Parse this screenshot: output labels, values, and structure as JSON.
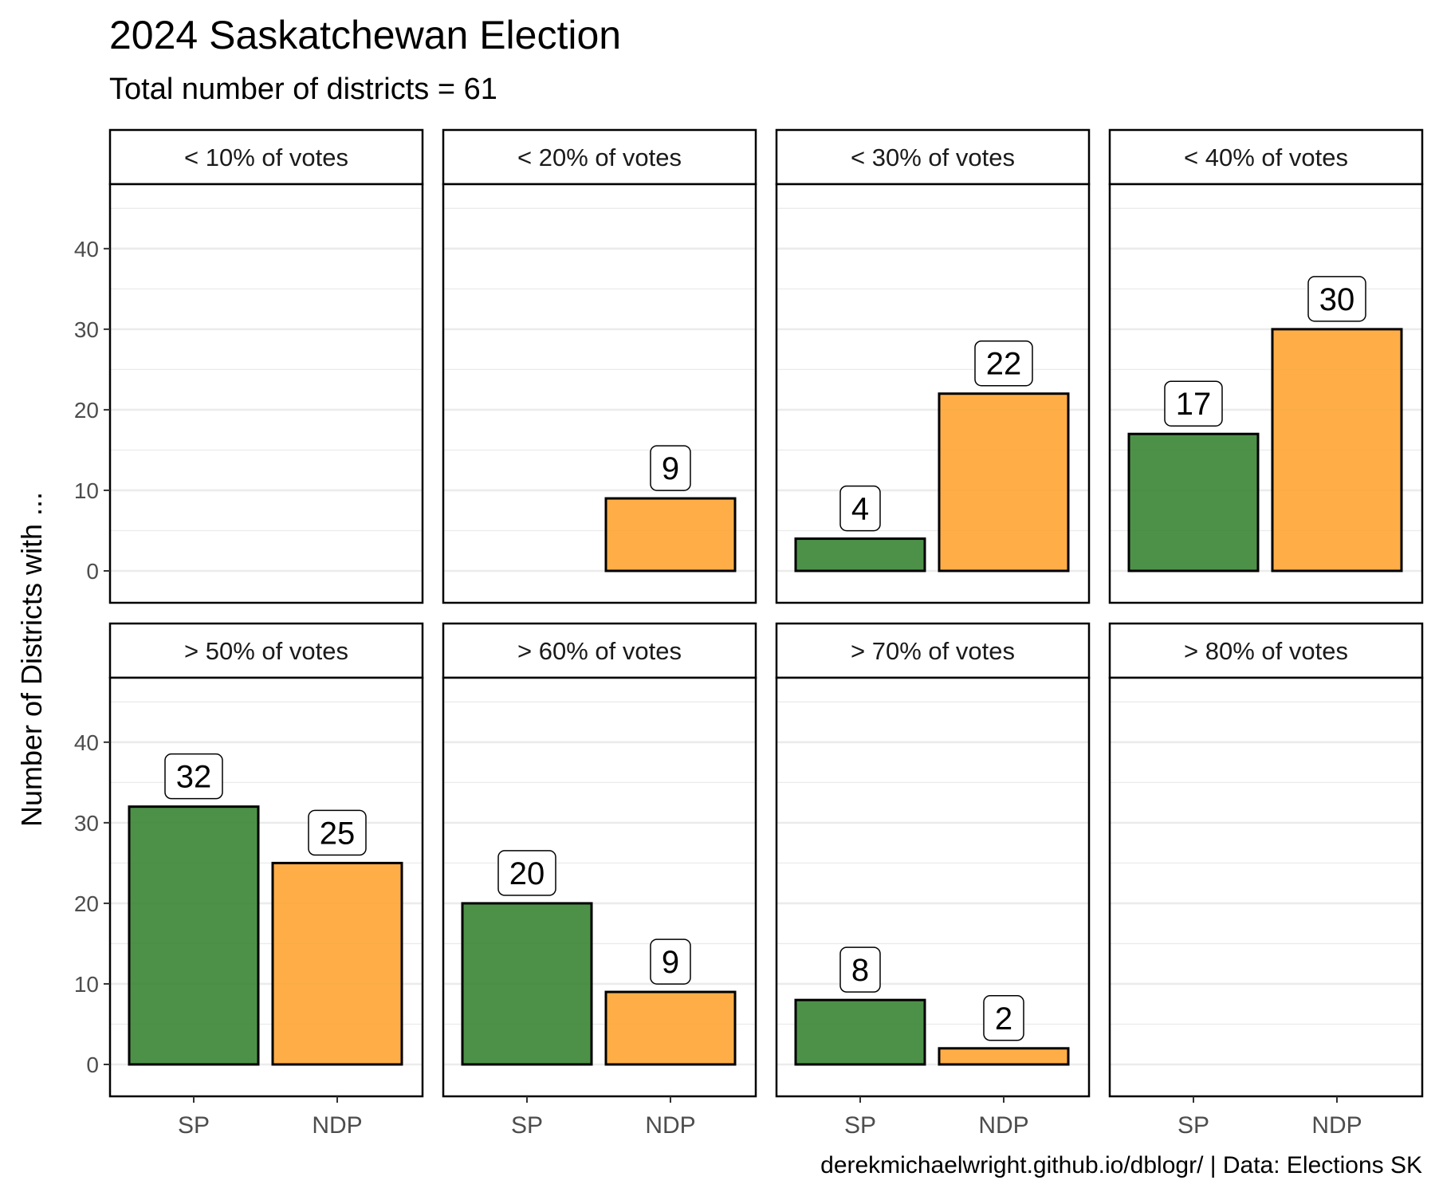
{
  "chart_data": {
    "type": "bar",
    "title": "2024 Saskatchewan Election",
    "subtitle": "Total number of districts = 61",
    "caption": "derekmichaelwright.github.io/dblogr/ | Data: Elections SK",
    "ylabel": "Number of Districts with ...",
    "xlabel": "",
    "ylim": [
      0,
      48
    ],
    "yticks": [
      0,
      10,
      20,
      30,
      40
    ],
    "grid": true,
    "categories": [
      "SP",
      "NDP"
    ],
    "colors": {
      "SP": "#3a8535",
      "NDP": "#ffa533"
    },
    "layout": {
      "rows": 2,
      "cols": 4
    },
    "facets": [
      {
        "label": "< 10% of votes",
        "values": [
          0,
          0
        ]
      },
      {
        "label": "< 20% of votes",
        "values": [
          0,
          9
        ]
      },
      {
        "label": "< 30% of votes",
        "values": [
          4,
          22
        ]
      },
      {
        "label": "< 40% of votes",
        "values": [
          17,
          30
        ]
      },
      {
        "label": "> 50% of votes",
        "values": [
          32,
          25
        ]
      },
      {
        "label": "> 60% of votes",
        "values": [
          20,
          9
        ]
      },
      {
        "label": "> 70% of votes",
        "values": [
          8,
          2
        ]
      },
      {
        "label": "> 80% of votes",
        "values": [
          0,
          0
        ]
      }
    ]
  }
}
